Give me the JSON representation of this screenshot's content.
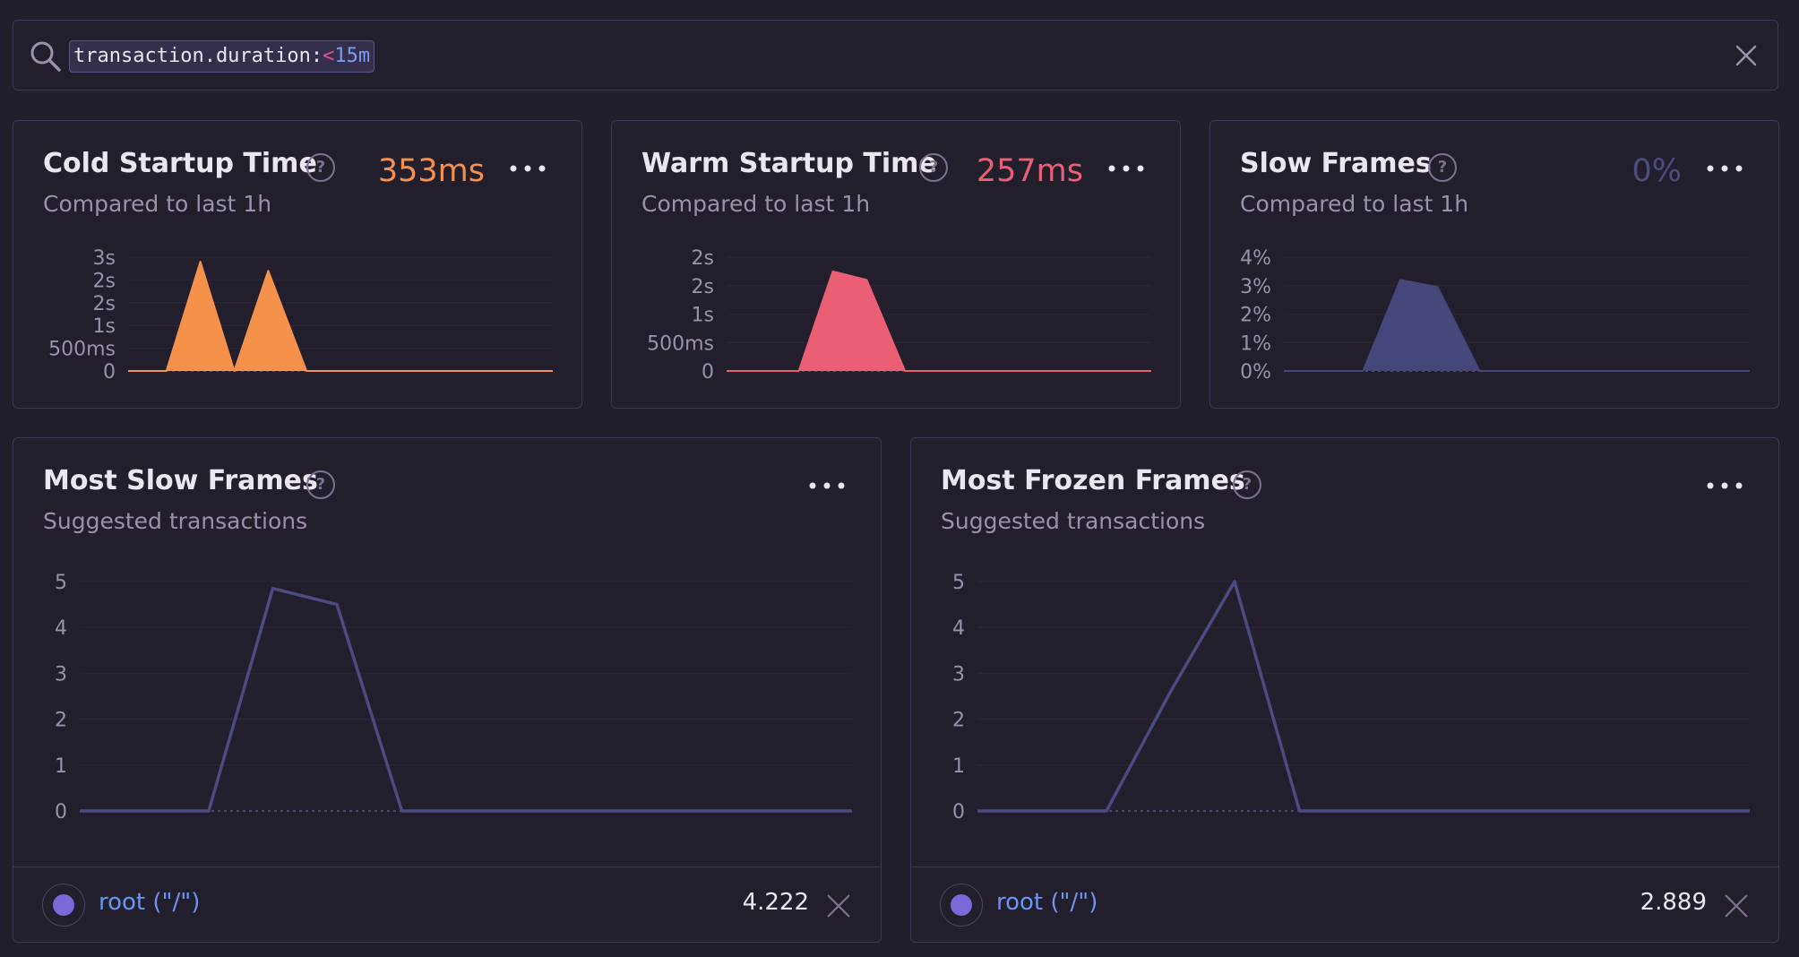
{
  "search": {
    "query_key": "transaction.duration:",
    "query_op": "<",
    "query_value": "15m"
  },
  "cards": [
    {
      "title": "Cold Startup Time",
      "subtitle": "Compared to last 1h",
      "value": "353ms",
      "value_color": "#f5914a"
    },
    {
      "title": "Warm Startup Time",
      "subtitle": "Compared to last 1h",
      "value": "257ms",
      "value_color": "#ea5f73"
    },
    {
      "title": "Slow Frames",
      "subtitle": "Compared to last 1h",
      "value": "0%",
      "value_color": "#4c4d7e"
    },
    {
      "title": "Most Slow Frames",
      "subtitle": "Suggested transactions",
      "legend": {
        "label": "root (\"/\")",
        "value": "4.222"
      }
    },
    {
      "title": "Most Frozen Frames",
      "subtitle": "Suggested transactions",
      "legend": {
        "label": "root (\"/\")",
        "value": "2.889"
      }
    }
  ],
  "chart_data": [
    {
      "type": "area",
      "y_ticks": [
        "0",
        "500ms",
        "1s",
        "2s",
        "2s",
        "3s"
      ],
      "ylim": [
        0,
        2.5
      ],
      "color": "#f5914a",
      "series": [
        {
          "x": [
            0,
            0.09,
            0.17,
            0.25,
            0.33,
            0.42,
            1
          ],
          "values": [
            0,
            0,
            2.4,
            0,
            2.2,
            0,
            0
          ]
        }
      ]
    },
    {
      "type": "area",
      "y_ticks": [
        "0",
        "500ms",
        "1s",
        "2s",
        "2s"
      ],
      "ylim": [
        0,
        2
      ],
      "color": "#ea5f73",
      "series": [
        {
          "x": [
            0,
            0.17,
            0.25,
            0.33,
            0.42,
            1
          ],
          "values": [
            0,
            0,
            1.75,
            1.6,
            0,
            0
          ]
        }
      ]
    },
    {
      "type": "area",
      "y_ticks": [
        "0%",
        "1%",
        "2%",
        "3%",
        "4%"
      ],
      "ylim": [
        0,
        4
      ],
      "color": "#45477a",
      "series": [
        {
          "x": [
            0,
            0.17,
            0.25,
            0.33,
            0.42,
            1
          ],
          "values": [
            0,
            0,
            3.2,
            2.95,
            0,
            0
          ]
        }
      ]
    },
    {
      "type": "line",
      "y_ticks": [
        "0",
        "1",
        "2",
        "3",
        "4",
        "5"
      ],
      "ylim": [
        0,
        5
      ],
      "color": "#4c4a82",
      "series": [
        {
          "x": [
            0,
            0.083,
            0.167,
            0.25,
            0.333,
            0.417,
            1
          ],
          "values": [
            0,
            0,
            0,
            4.85,
            4.5,
            0,
            0
          ]
        }
      ]
    },
    {
      "type": "line",
      "y_ticks": [
        "0",
        "1",
        "2",
        "3",
        "4",
        "5"
      ],
      "ylim": [
        0,
        5
      ],
      "color": "#4c4a82",
      "series": [
        {
          "x": [
            0,
            0.083,
            0.167,
            0.25,
            0.333,
            0.417,
            1
          ],
          "values": [
            0,
            0,
            0,
            2.6,
            5,
            0,
            0
          ]
        }
      ]
    }
  ]
}
